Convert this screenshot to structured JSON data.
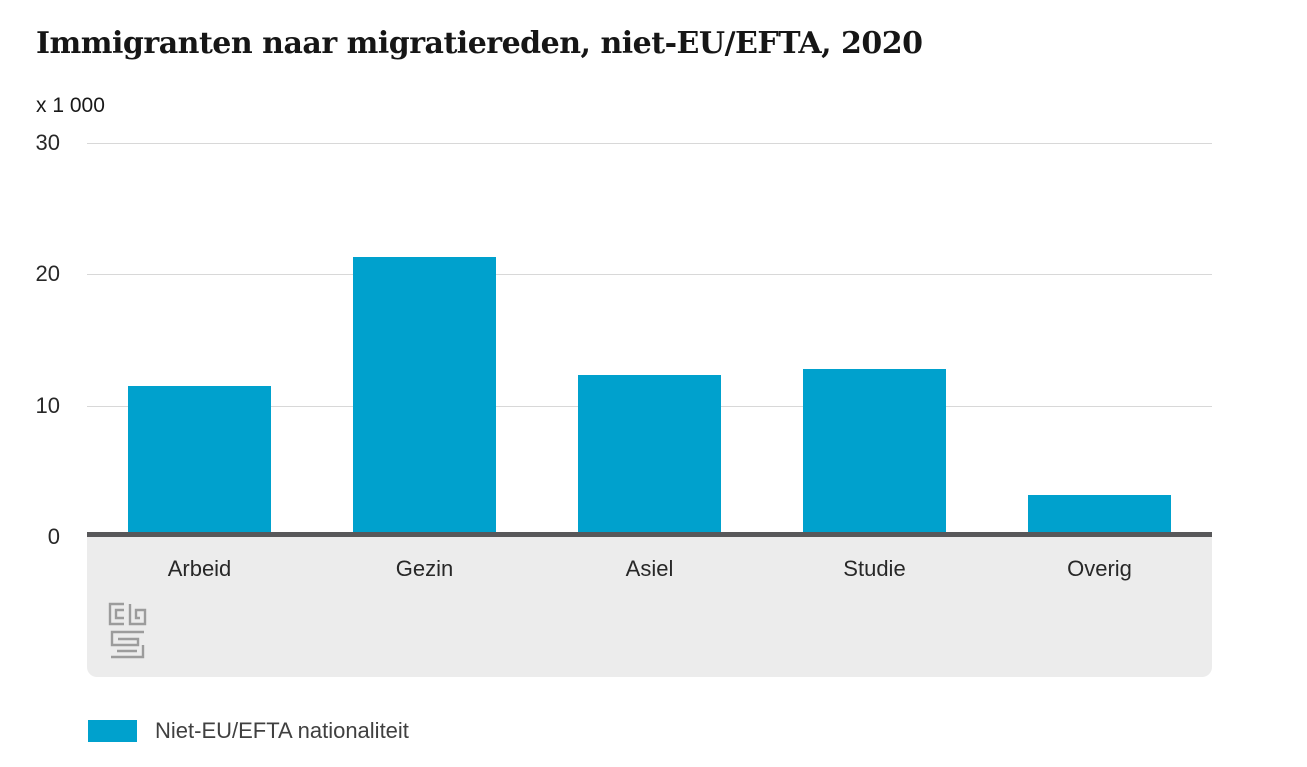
{
  "chart": {
    "title": "Immigranten naar migratiereden, niet-EU/EFTA, 2020",
    "unit_label": "x 1 000",
    "legend": {
      "label": "Niet-EU/EFTA nationaliteit"
    }
  },
  "chart_data": {
    "type": "bar",
    "title": "Immigranten naar migratiereden, niet-EU/EFTA, 2020",
    "ylabel": "x 1 000",
    "xlabel": "",
    "categories": [
      "Arbeid",
      "Gezin",
      "Asiel",
      "Studie",
      "Overig"
    ],
    "series": [
      {
        "name": "Niet-EU/EFTA nationaliteit",
        "values": [
          11.5,
          21.3,
          12.3,
          12.8,
          3.2
        ]
      }
    ],
    "ylim": [
      0,
      30
    ],
    "yticks": [
      30,
      20,
      10,
      0
    ],
    "grid": true,
    "legend_position": "bottom-left",
    "colors": {
      "bar": "#00a1cd",
      "gridline": "#d8d8d8",
      "axis_line": "#58585a",
      "band_background": "#ececec",
      "title_text": "#161616",
      "tick_text": "#282828",
      "legend_text": "#404040",
      "logo": "#9c9c9c"
    }
  }
}
